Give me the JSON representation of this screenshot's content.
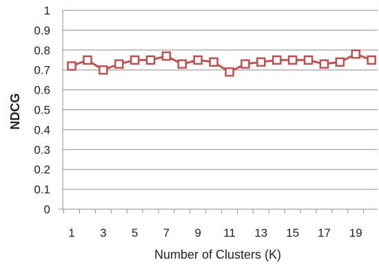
{
  "chart_data": {
    "type": "line",
    "title": "",
    "xlabel": "Number of Clusters (K)",
    "ylabel": "NDCG",
    "xlim": [
      1,
      20
    ],
    "ylim": [
      0,
      1
    ],
    "y_ticks": [
      "0",
      "0.1",
      "0.2",
      "0.3",
      "0.4",
      "0.5",
      "0.6",
      "0.7",
      "0.8",
      "0.9",
      "1"
    ],
    "x_ticks": [
      "1",
      "3",
      "5",
      "7",
      "9",
      "11",
      "13",
      "15",
      "17",
      "19"
    ],
    "grid": true,
    "marker": "square",
    "color": "#c0504d",
    "x": [
      1,
      2,
      3,
      4,
      5,
      6,
      7,
      8,
      9,
      10,
      11,
      12,
      13,
      14,
      15,
      16,
      17,
      18,
      19,
      20
    ],
    "series": [
      {
        "values": [
          0.72,
          0.75,
          0.7,
          0.73,
          0.75,
          0.75,
          0.77,
          0.73,
          0.75,
          0.74,
          0.69,
          0.73,
          0.74,
          0.75,
          0.75,
          0.75,
          0.73,
          0.74,
          0.78,
          0.75
        ]
      }
    ]
  }
}
